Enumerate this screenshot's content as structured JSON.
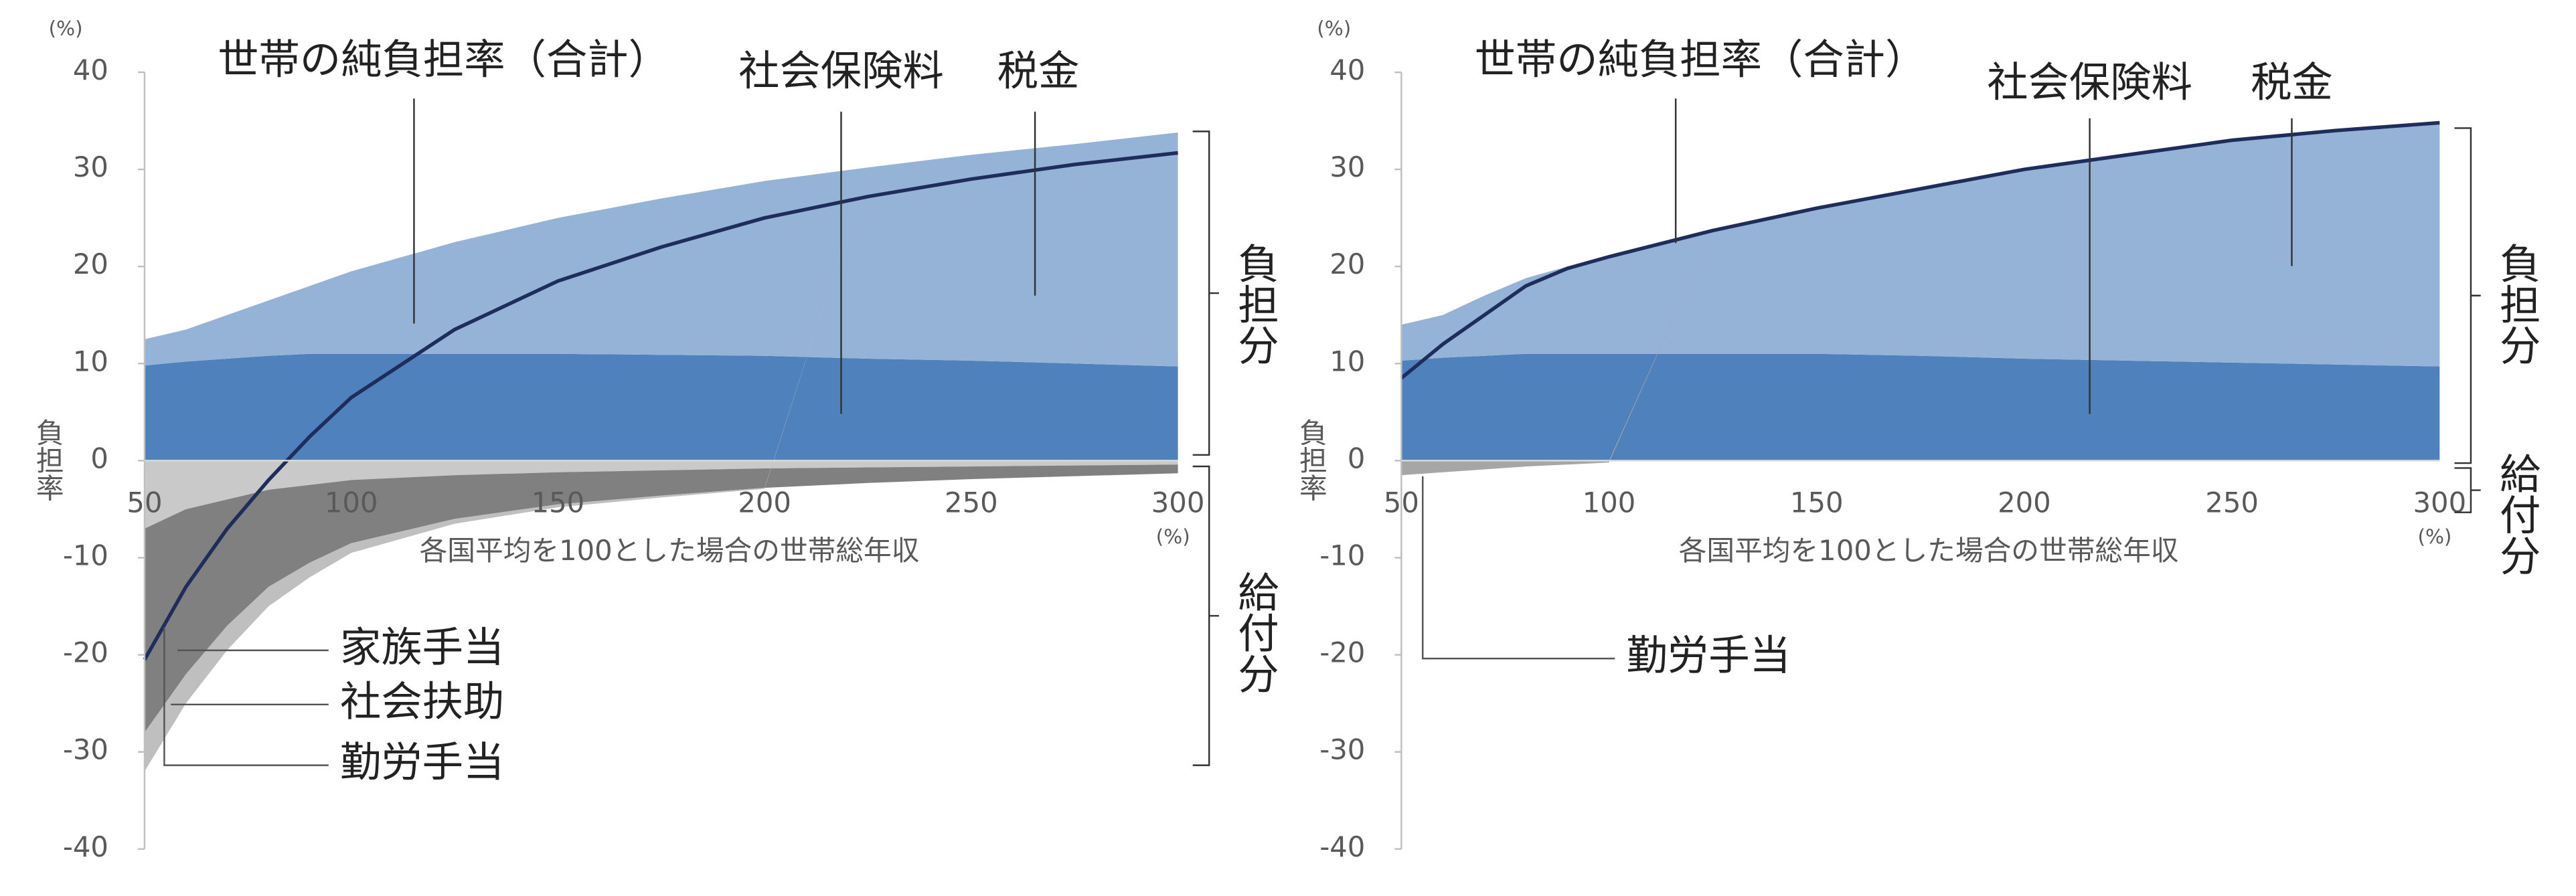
{
  "chart_data": [
    {
      "type": "area",
      "y_unit": "(%)",
      "ylabel": "負担率",
      "xlabel": "各国平均を100とした場合の世帯総年収",
      "x_unit": "(%)",
      "x": [
        50,
        60,
        70,
        80,
        90,
        100,
        125,
        150,
        175,
        200,
        225,
        250,
        275,
        300
      ],
      "xlim": [
        50,
        300
      ],
      "xticks": [
        50,
        100,
        150,
        200,
        250,
        300
      ],
      "ylim": [
        -40,
        40
      ],
      "yticks": [
        -40,
        -30,
        -20,
        -10,
        0,
        10,
        20,
        30,
        40
      ],
      "series": [
        {
          "name": "社会保険料",
          "color": "#4f81bd",
          "values": [
            9.8,
            10.2,
            10.5,
            10.8,
            11,
            11,
            11,
            11,
            10.9,
            10.8,
            10.5,
            10.3,
            10,
            9.7
          ]
        },
        {
          "name": "税金",
          "color": "#95b3d7",
          "values": [
            2.7,
            3.3,
            4.5,
            5.7,
            7,
            8.5,
            11.5,
            14,
            16.1,
            18,
            19.7,
            21.2,
            22.6,
            24.1
          ]
        },
        {
          "name": "家族手当",
          "color": "#c9c9c9",
          "values": [
            -7,
            -5,
            -4,
            -3,
            -2.5,
            -2,
            -1.5,
            -1.2,
            -1,
            -0.8,
            -0.7,
            -0.6,
            -0.5,
            -0.4
          ]
        },
        {
          "name": "社会扶助",
          "color": "#808080",
          "values": [
            -21,
            -17,
            -13,
            -10,
            -8,
            -6.5,
            -4.5,
            -3.3,
            -2.6,
            -2,
            -1.6,
            -1.3,
            -1.1,
            -0.9
          ]
        },
        {
          "name": "勤労手当",
          "color": "#bfbfbf",
          "values": [
            -4,
            -3,
            -2.5,
            -2,
            -1.5,
            -1,
            -0.5,
            -0.3,
            -0.2,
            -0.1,
            0,
            0,
            0,
            0
          ]
        }
      ],
      "line": {
        "name": "世帯の純負担率（合計）",
        "color": "#1f2d5c",
        "values": [
          -20.5,
          -13,
          -7,
          -2,
          2.5,
          6.5,
          13.5,
          18.5,
          22,
          25,
          27.2,
          29,
          30.5,
          31.7
        ]
      },
      "brackets": [
        "負担分",
        "給付分"
      ]
    },
    {
      "type": "area",
      "y_unit": "(%)",
      "ylabel": "負担率",
      "xlabel": "各国平均を100とした場合の世帯総年収",
      "x_unit": "(%)",
      "x": [
        50,
        60,
        70,
        80,
        90,
        100,
        125,
        150,
        175,
        200,
        225,
        250,
        275,
        300
      ],
      "xlim": [
        50,
        300
      ],
      "xticks": [
        50,
        100,
        150,
        200,
        250,
        300
      ],
      "ylim": [
        -40,
        40
      ],
      "yticks": [
        -40,
        -30,
        -20,
        -10,
        0,
        10,
        20,
        30,
        40
      ],
      "series": [
        {
          "name": "社会保険料",
          "color": "#4f81bd",
          "values": [
            10.3,
            10.6,
            10.8,
            11,
            11,
            11,
            11,
            11,
            10.8,
            10.5,
            10.3,
            10.1,
            9.9,
            9.7
          ]
        },
        {
          "name": "税金",
          "color": "#95b3d7",
          "values": [
            3.7,
            4.4,
            6.2,
            7.8,
            9,
            10,
            12.7,
            15,
            17.2,
            19.5,
            21.2,
            22.9,
            24.1,
            25.1
          ]
        },
        {
          "name": "勤労手当",
          "color": "#a6a6a6",
          "values": [
            -1.5,
            -1.2,
            -0.9,
            -0.6,
            -0.4,
            -0.2,
            0,
            0,
            0,
            0,
            0,
            0,
            0,
            0
          ]
        }
      ],
      "line": {
        "name": "世帯の純負担率（合計）",
        "color": "#1f2d5c",
        "values": [
          8.5,
          12,
          15,
          18,
          19.8,
          21,
          23.7,
          26,
          28,
          30,
          31.5,
          33,
          34,
          34.8
        ]
      },
      "brackets": [
        "負担分",
        "給付分"
      ]
    }
  ]
}
